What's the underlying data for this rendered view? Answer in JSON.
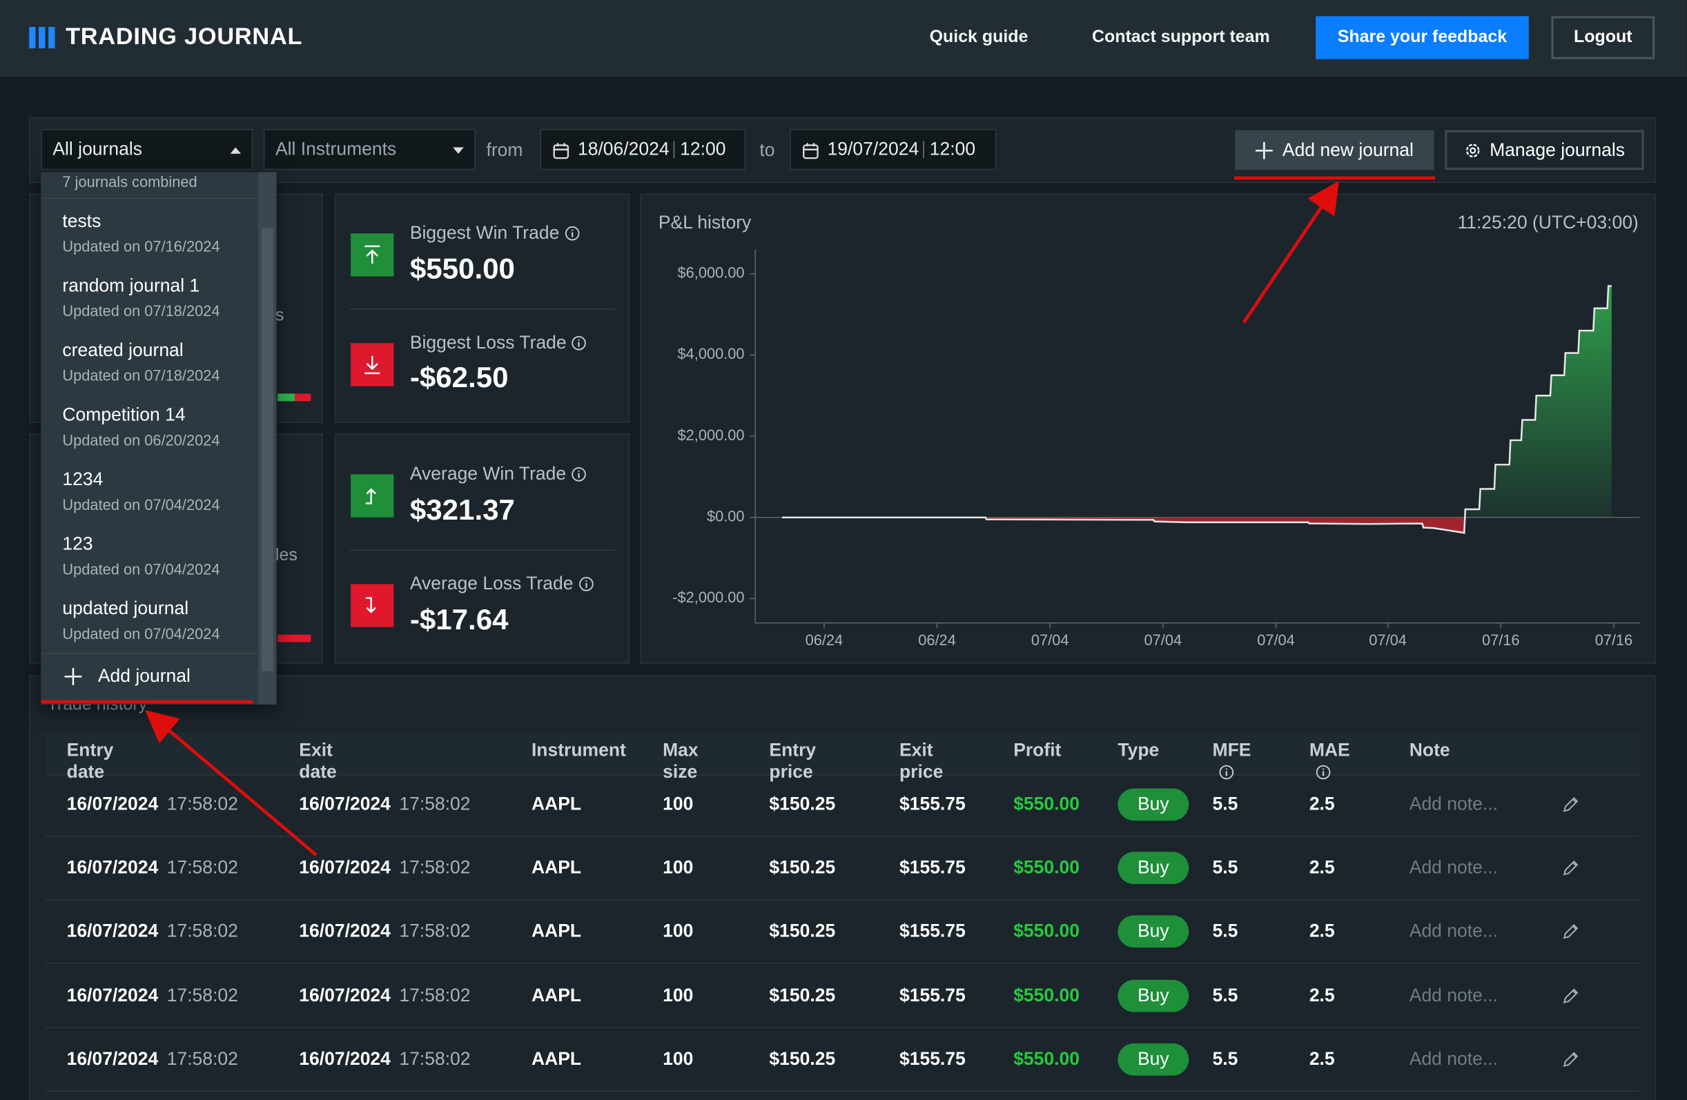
{
  "header": {
    "brand": "TRADING JOURNAL",
    "nav": [
      "Quick guide",
      "Contact support team"
    ],
    "feedback_button": "Share your feedback",
    "logout_button": "Logout"
  },
  "filters": {
    "journal_select": "All journals",
    "instrument_select": "All Instruments",
    "from_label": "from",
    "from_date": "18/06/2024",
    "from_time": "12:00",
    "to_label": "to",
    "to_date": "19/07/2024",
    "to_time": "12:00",
    "add_journal_button": "Add new journal",
    "manage_button": "Manage journals"
  },
  "journal_dropdown": {
    "summary": "7 journals combined",
    "items": [
      {
        "name": "tests",
        "updated": "Updated on 07/16/2024"
      },
      {
        "name": "random journal 1",
        "updated": "Updated on 07/18/2024"
      },
      {
        "name": "created journal",
        "updated": "Updated on 07/18/2024"
      },
      {
        "name": "Competition 14",
        "updated": "Updated on 06/20/2024"
      },
      {
        "name": "1234",
        "updated": "Updated on 07/04/2024"
      },
      {
        "name": "123",
        "updated": "Updated on 07/04/2024"
      },
      {
        "name": "updated journal",
        "updated": "Updated on 07/04/2024"
      }
    ],
    "add_button": "Add journal"
  },
  "hidden_fragments": [
    "s",
    "les"
  ],
  "stats": [
    {
      "label": "Biggest Win Trade",
      "value": "$550.00"
    },
    {
      "label": "Biggest Loss Trade",
      "value": "-$62.50"
    },
    {
      "label": "Average Win Trade",
      "value": "$321.37"
    },
    {
      "label": "Average Loss Trade",
      "value": "-$17.64"
    }
  ],
  "chart_data": {
    "type": "line",
    "title": "P&L history",
    "timestamp": "11:25:20 (UTC+03:00)",
    "line_color": "#e8e8e8",
    "positive_color": "#2e9e4a",
    "negative_color": "#b3242f",
    "x": [
      2.5,
      21.4,
      21.5,
      37,
      37.1,
      40,
      51.4,
      51.5,
      57,
      62,
      62.1,
      63,
      64,
      65.9,
      66,
      67.3,
      67.4,
      68.7,
      68.8,
      70.1,
      70.2,
      71.2,
      71.3,
      72.5,
      72.6,
      73.9,
      74,
      75.2,
      75.3,
      76.5,
      76.6,
      77.9,
      78,
      79.2,
      79.3,
      79.6
    ],
    "values": [
      0,
      0,
      -50,
      -60,
      -100,
      -120,
      -120,
      -150,
      -160,
      -150,
      -250,
      -260,
      -300,
      -380,
      200,
      200,
      700,
      700,
      1300,
      1300,
      1900,
      1900,
      2400,
      2400,
      3000,
      3000,
      3500,
      3500,
      4050,
      4050,
      4600,
      4600,
      5150,
      5150,
      5700,
      5700
    ],
    "xlim": [
      0,
      82.2
    ],
    "ylim": [
      -2600,
      6600
    ],
    "xticks": [
      {
        "value": 6.4,
        "label": "06/24"
      },
      {
        "value": 16.9,
        "label": "06/24"
      },
      {
        "value": 27.4,
        "label": "07/04"
      },
      {
        "value": 37.9,
        "label": "07/04"
      },
      {
        "value": 48.4,
        "label": "07/04"
      },
      {
        "value": 58.8,
        "label": "07/04"
      },
      {
        "value": 69.3,
        "label": "07/16"
      },
      {
        "value": 79.8,
        "label": "07/16"
      }
    ],
    "yticks": [
      {
        "value": 6000,
        "label": "$6,000.00"
      },
      {
        "value": 4000,
        "label": "$4,000.00"
      },
      {
        "value": 2000,
        "label": "$2,000.00"
      },
      {
        "value": 0,
        "label": "$0.00"
      },
      {
        "value": -2000,
        "label": "-$2,000.00"
      }
    ]
  },
  "trade_history": {
    "title": "Trade history",
    "columns": [
      "Entry date",
      "Exit date",
      "Instrument",
      "Max size",
      "Entry price",
      "Exit price",
      "Profit",
      "Type",
      "MFE",
      "MAE",
      "Note"
    ],
    "rows": [
      [
        "16/07/2024",
        "17:58:02",
        "16/07/2024",
        "17:58:02",
        "AAPL",
        "100",
        "$150.25",
        "$155.75",
        "$550.00",
        "Buy",
        "5.5",
        "2.5",
        "Add note..."
      ],
      [
        "16/07/2024",
        "17:58:02",
        "16/07/2024",
        "17:58:02",
        "AAPL",
        "100",
        "$150.25",
        "$155.75",
        "$550.00",
        "Buy",
        "5.5",
        "2.5",
        "Add note..."
      ],
      [
        "16/07/2024",
        "17:58:02",
        "16/07/2024",
        "17:58:02",
        "AAPL",
        "100",
        "$150.25",
        "$155.75",
        "$550.00",
        "Buy",
        "5.5",
        "2.5",
        "Add note..."
      ],
      [
        "16/07/2024",
        "17:58:02",
        "16/07/2024",
        "17:58:02",
        "AAPL",
        "100",
        "$150.25",
        "$155.75",
        "$550.00",
        "Buy",
        "5.5",
        "2.5",
        "Add note..."
      ],
      [
        "16/07/2024",
        "17:58:02",
        "16/07/2024",
        "17:58:02",
        "AAPL",
        "100",
        "$150.25",
        "$155.75",
        "$550.00",
        "Buy",
        "5.5",
        "2.5",
        "Add note..."
      ]
    ]
  }
}
